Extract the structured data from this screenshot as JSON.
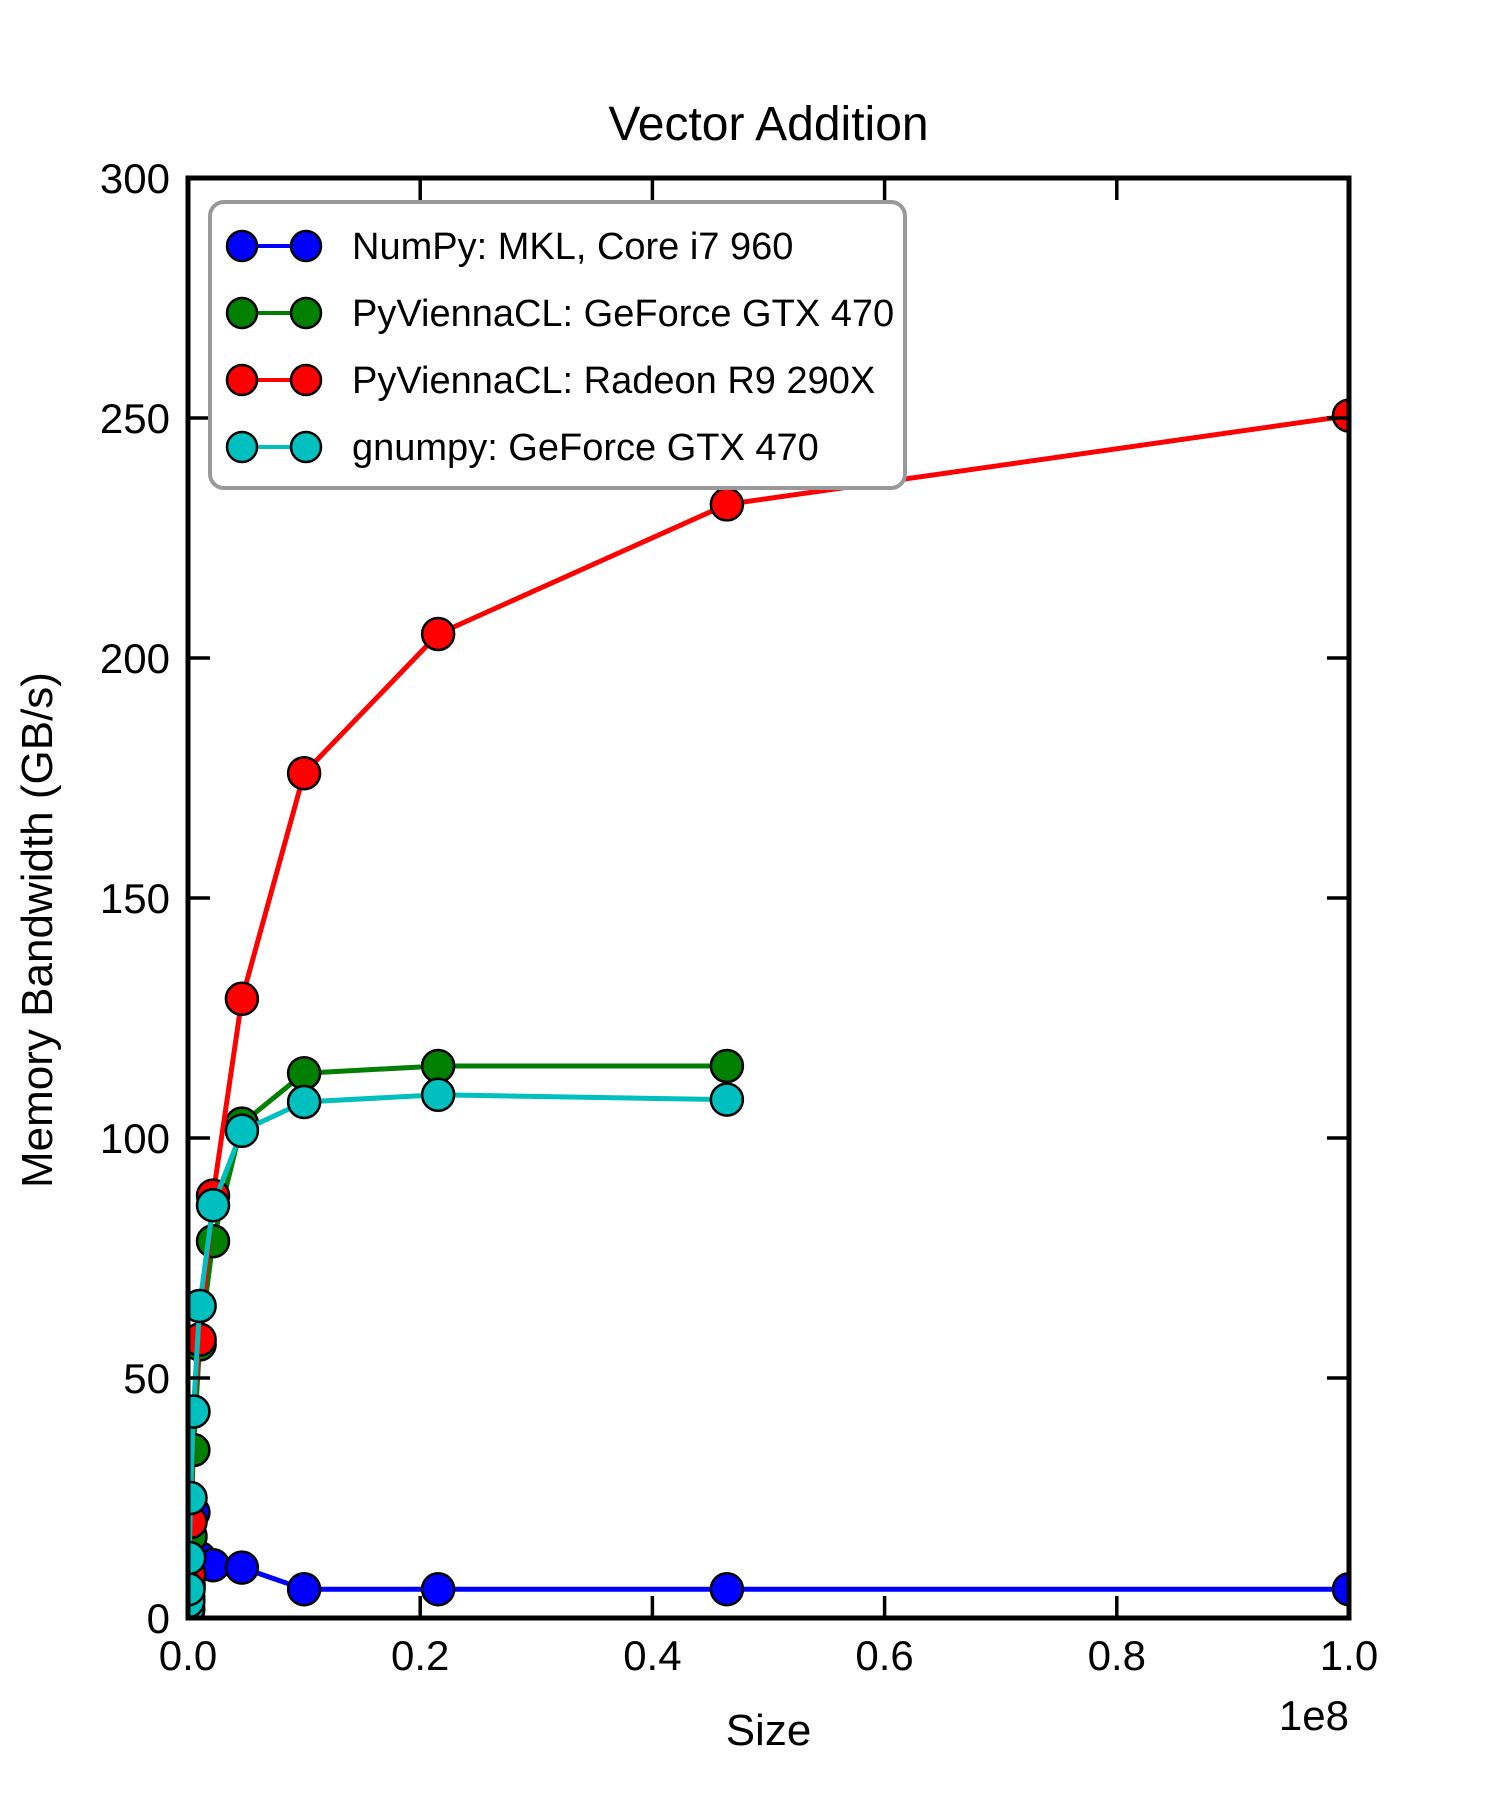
{
  "chart_data": {
    "type": "line",
    "title": "Vector Addition",
    "xlabel": "Size",
    "ylabel": "Memory Bandwidth (GB/s)",
    "x_offset_label": "1e8",
    "xlim": [
      0,
      100000000
    ],
    "ylim": [
      0,
      300
    ],
    "grid": false,
    "legend_position": "upper left",
    "xticks": {
      "values": [
        0,
        20000000,
        40000000,
        60000000,
        80000000,
        100000000
      ],
      "labels": [
        "0.0",
        "0.2",
        "0.4",
        "0.6",
        "0.8",
        "1.0"
      ]
    },
    "yticks": {
      "values": [
        0,
        50,
        100,
        150,
        200,
        250,
        300
      ],
      "labels": [
        "0",
        "50",
        "100",
        "150",
        "200",
        "250",
        "300"
      ]
    },
    "x": [
      10000,
      21544,
      46416,
      100000,
      215443,
      464159,
      1000000,
      2154435,
      4641589,
      10000000,
      21544347,
      46415888,
      100000000
    ],
    "series": [
      {
        "name": "NumPy: MKL, Core i7 960",
        "color": "#0000ff",
        "values": [
          6,
          9,
          13,
          18,
          22,
          22,
          12.5,
          11,
          10.5,
          6,
          6,
          6,
          6
        ]
      },
      {
        "name": "PyViennaCL: GeForce GTX 470",
        "color": "#007f00",
        "values": [
          1.5,
          3.5,
          7,
          9,
          17,
          35,
          57,
          78.5,
          103,
          113.5,
          115,
          115,
          null
        ]
      },
      {
        "name": "PyViennaCL: Radeon R9 290X",
        "color": "#ff0000",
        "values": [
          2,
          4.5,
          6.5,
          9,
          20,
          43,
          58,
          88,
          129,
          176,
          205,
          232,
          250.5
        ]
      },
      {
        "name": "gnumpy: GeForce GTX 470",
        "color": "#00bfbf",
        "values": [
          2,
          3.5,
          6,
          12.5,
          25,
          43,
          65,
          86,
          101.5,
          107.5,
          109,
          108,
          null
        ]
      }
    ],
    "marker": "circle",
    "marker_edge_color": "#000000",
    "legend_border_color": "#999999"
  }
}
